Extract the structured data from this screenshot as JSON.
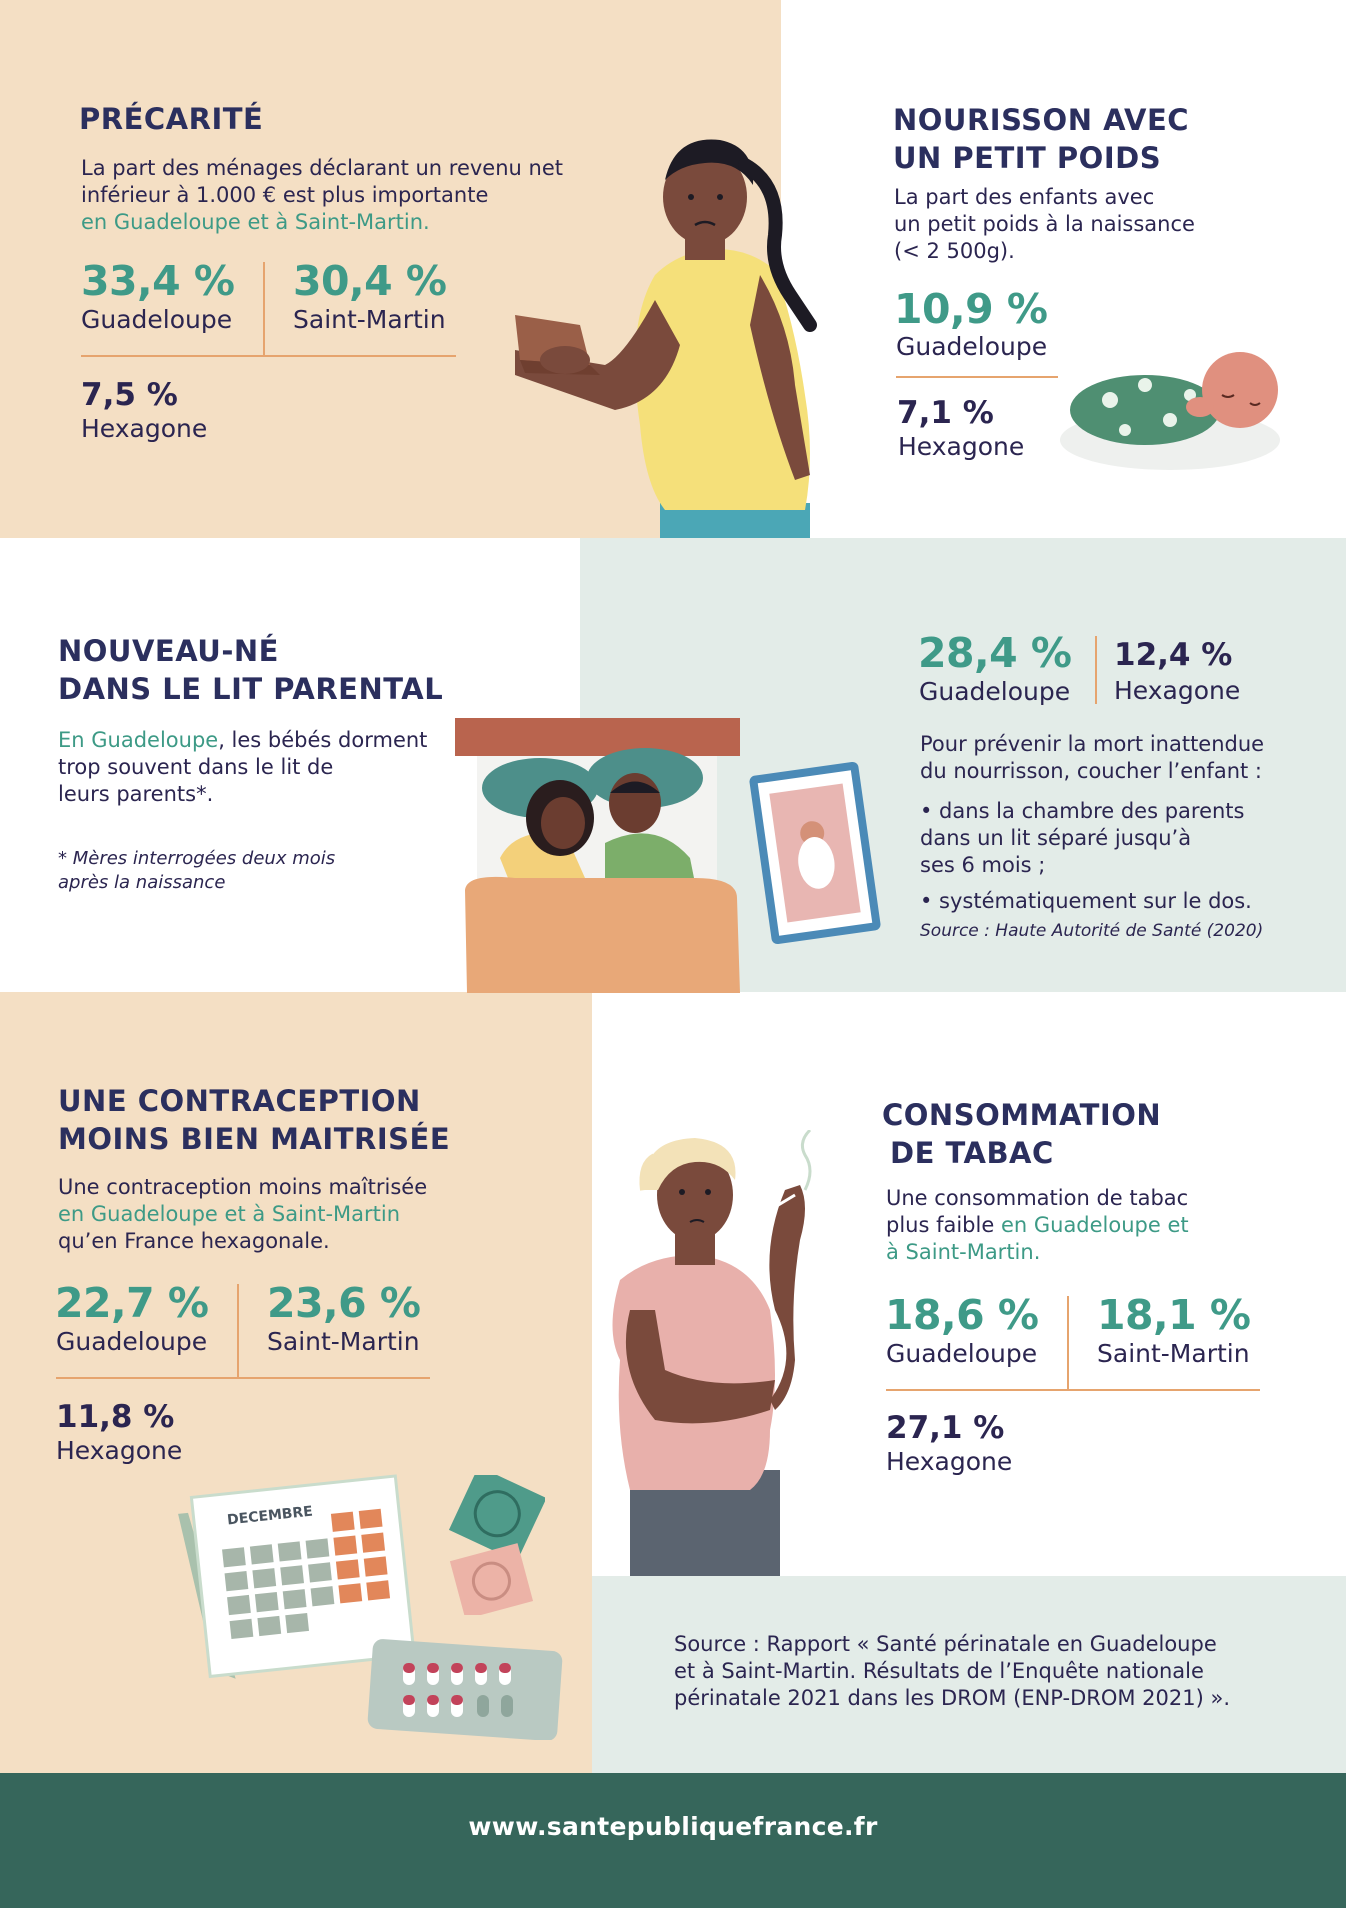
{
  "s1": {
    "title": "PRÉCARITÉ",
    "text1": "La part des ménages déclarant un revenu net",
    "text2": "inférieur à 1.000 € est plus importante",
    "text3": "en Guadeloupe et à Saint-Martin.",
    "v1": "33,4 %",
    "l1": "Guadeloupe",
    "v2": "30,4 %",
    "l2": "Saint-Martin",
    "v3": "7,5 %",
    "l3": "Hexagone"
  },
  "s2": {
    "title1": "NOURISSON AVEC",
    "title2": "UN PETIT POIDS",
    "text1": "La part des enfants avec",
    "text2": "un petit poids à la naissance",
    "text3": "(< 2 500g).",
    "v1": "10,9 %",
    "l1": "Guadeloupe",
    "v2": "7,1 %",
    "l2": "Hexagone"
  },
  "s3": {
    "title1": "NOUVEAU-NÉ",
    "title2": "DANS LE LIT PARENTAL",
    "text1a": "En Guadeloupe",
    "text1b": ", les bébés dorment",
    "text2": "trop souvent dans le lit de",
    "text3": "leurs parents*.",
    "note1": "* Mères interrogées deux mois",
    "note2": "après la naissance",
    "v1": "28,4 %",
    "l1": "Guadeloupe",
    "v2": "12,4 %",
    "l2": "Hexagone",
    "adv1": "Pour prévenir la mort inattendue",
    "adv2": "du nourrisson, coucher l’enfant :",
    "b1a": "• dans la chambre des parents",
    "b1b": "dans un lit séparé jusqu’à",
    "b1c": "ses 6 mois ;",
    "b2": "• systématiquement sur le dos.",
    "source": "Source : Haute Autorité de Santé (2020)"
  },
  "s4": {
    "title1": "UNE CONTRACEPTION",
    "title2": "MOINS BIEN MAITRISÉE",
    "text1": "Une contraception moins maîtrisée",
    "text2": "en Guadeloupe et à Saint-Martin",
    "text3": "qu’en France hexagonale.",
    "v1": "22,7 %",
    "l1": "Guadeloupe",
    "v2": "23,6 %",
    "l2": "Saint-Martin",
    "v3": "11,8 %",
    "l3": "Hexagone",
    "calendar_month": "DECEMBRE"
  },
  "s5": {
    "title1": "CONSOMMATION",
    "title2": "DE TABAC",
    "text1": "Une consommation de tabac",
    "text2a": "plus faible ",
    "text2b": "en Guadeloupe et",
    "text3": "à Saint-Martin.",
    "v1": "18,6 %",
    "l1": "Guadeloupe",
    "v2": "18,1 %",
    "l2": "Saint-Martin",
    "v3": "27,1 %",
    "l3": "Hexagone"
  },
  "source": {
    "line1": "Source : Rapport « Santé périnatale en Guadeloupe",
    "line2": "et à Saint-Martin. Résultats de l’Enquête nationale",
    "line3": "périnatale 2021 dans les DROM (ENP-DROM 2021) »."
  },
  "footer": {
    "url": "www.santepubliquefrance.fr"
  },
  "colors": {
    "beige": "#f4dfc4",
    "mint": "#e3ece8",
    "footer": "#36665b",
    "accent": "#3f9a88",
    "divider": "#e6a46e"
  }
}
